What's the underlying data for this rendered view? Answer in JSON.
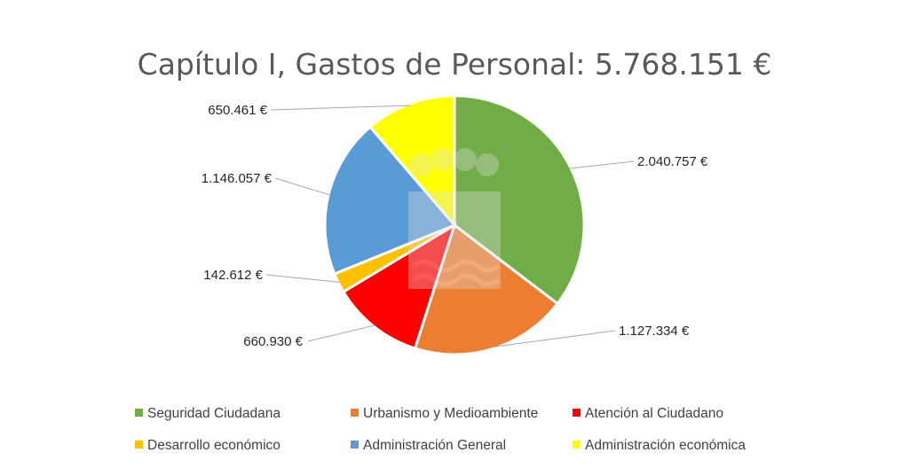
{
  "chart_data": {
    "type": "pie",
    "title": "Capítulo I, Gastos de Personal: 5.768.151 €",
    "categories": [
      "Seguridad Ciudadana",
      "Urbanismo y Medioambiente",
      "Atención al Ciudadano",
      "Desarrollo económico",
      "Administración General",
      "Administración económica"
    ],
    "values": [
      2040757,
      1127334,
      660930,
      142612,
      1146057,
      650461
    ],
    "data_labels": [
      "2.040.757 €",
      "1.127.334 €",
      "660.930 €",
      "142.612 €",
      "1.146.057 €",
      "650.461 €"
    ],
    "colors": [
      "#70ad47",
      "#ed7d31",
      "#ff0000",
      "#ffc000",
      "#5b9bd5",
      "#ffff00"
    ],
    "start_angle": "12 o'clock",
    "direction": "clockwise",
    "legend_position": "bottom"
  }
}
